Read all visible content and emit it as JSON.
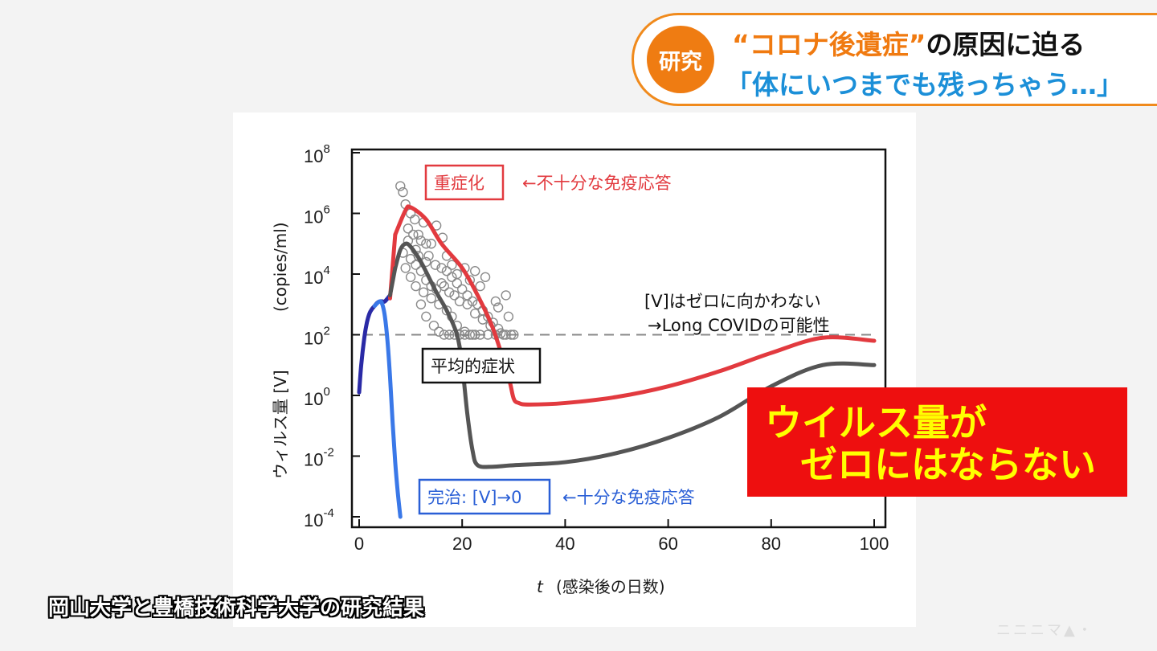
{
  "banner": {
    "badge": "研究",
    "headline_part1": "“コロナ後遺症”",
    "headline_part2": "の原因に迫る",
    "subheadline": "「体にいつまでも残っちゃう…」",
    "accent_color": "#f07a10",
    "sub_color": "#1b8fd8"
  },
  "chart_data": {
    "type": "line",
    "xlabel_var": "t",
    "xlabel": "(感染後の日数)",
    "ylabel_var": "ウィルス量 [V]",
    "ylabel_unit": "(copies/ml)",
    "xlim": [
      0,
      100
    ],
    "ylim_log10": [
      -4,
      8
    ],
    "y_scale": "log",
    "x_ticks": [
      "0",
      "20",
      "40",
      "60",
      "80",
      "100"
    ],
    "x_tick_values": [
      0,
      20,
      40,
      60,
      80,
      100
    ],
    "y_ticks": [
      {
        "base": "10",
        "exp": "8",
        "value": 8
      },
      {
        "base": "10",
        "exp": "6",
        "value": 6
      },
      {
        "base": "10",
        "exp": "4",
        "value": 4
      },
      {
        "base": "10",
        "exp": "2",
        "value": 2
      },
      {
        "base": "10",
        "exp": "0",
        "value": 0
      },
      {
        "base": "10",
        "exp": "-2",
        "value": -2
      },
      {
        "base": "10",
        "exp": "-4",
        "value": -4
      }
    ],
    "threshold_log10": 2,
    "series": [
      {
        "color": "#e23a3f",
        "x": [
          7,
          9,
          10,
          13,
          16,
          20,
          23,
          26,
          29,
          30,
          31,
          33,
          40,
          50,
          60,
          70,
          80,
          90,
          100
        ],
        "log10_y": [
          5.3,
          6.1,
          6.2,
          5.8,
          5.0,
          4.2,
          3.3,
          2.2,
          0.6,
          -0.1,
          -0.25,
          -0.3,
          -0.25,
          -0.05,
          0.3,
          0.8,
          1.4,
          1.9,
          1.8
        ]
      },
      {
        "color": "#555555",
        "x": [
          7,
          8,
          9,
          10,
          12,
          15,
          17,
          19,
          20,
          21,
          22,
          23,
          26,
          30,
          40,
          50,
          60,
          70,
          80,
          90,
          100
        ],
        "log10_y": [
          4.2,
          4.8,
          5.0,
          4.9,
          4.4,
          3.4,
          2.8,
          2.0,
          1.0,
          -0.6,
          -1.8,
          -2.3,
          -2.35,
          -2.3,
          -2.2,
          -1.9,
          -1.4,
          -0.7,
          0.3,
          1.0,
          1.0
        ]
      },
      {
        "color": "#2a2aa6",
        "x": [
          0,
          0.4,
          1,
          1.5,
          2,
          2.5,
          3,
          3.5,
          4,
          4.5,
          5,
          6
        ],
        "log10_y": [
          0.1,
          1.0,
          1.9,
          2.4,
          2.7,
          2.85,
          2.95,
          3.05,
          3.1,
          3.1,
          3.1,
          3.3
        ]
      },
      {
        "color": "#3a78e8",
        "x": [
          3,
          4,
          4.5,
          5,
          5.5,
          6,
          6.5,
          7,
          7.5,
          8
        ],
        "log10_y": [
          2.95,
          3.1,
          3.0,
          2.6,
          1.8,
          0.6,
          -0.9,
          -2.2,
          -3.2,
          -4.0
        ]
      },
      {
        "color": "#e23a3f",
        "x": [
          6,
          7
        ],
        "log10_y": [
          3.2,
          5.3
        ]
      },
      {
        "color": "#555555",
        "x": [
          6,
          7
        ],
        "log10_y": [
          3.3,
          4.2
        ]
      }
    ],
    "scatter_points": [
      [
        8.0,
        6.9
      ],
      [
        9.0,
        6.3
      ],
      [
        8.5,
        6.7
      ],
      [
        10.0,
        6.0
      ],
      [
        11.5,
        5.3
      ],
      [
        9.5,
        5.5
      ],
      [
        10.8,
        5.8
      ],
      [
        12.0,
        5.1
      ],
      [
        13.0,
        5.0
      ],
      [
        14.0,
        5.0
      ],
      [
        15.0,
        5.6
      ],
      [
        16.2,
        5.2
      ],
      [
        12.5,
        5.7
      ],
      [
        11.0,
        4.8
      ],
      [
        13.5,
        4.6
      ],
      [
        14.8,
        4.3
      ],
      [
        16.0,
        4.2
      ],
      [
        17.0,
        4.1
      ],
      [
        18.0,
        3.9
      ],
      [
        19.0,
        3.7
      ],
      [
        20.0,
        3.5
      ],
      [
        21.0,
        3.3
      ],
      [
        22.0,
        3.1
      ],
      [
        23.0,
        3.0
      ],
      [
        24.0,
        2.8
      ],
      [
        25.0,
        2.6
      ],
      [
        26.0,
        2.4
      ],
      [
        27.0,
        2.2
      ],
      [
        28.0,
        2.0
      ],
      [
        29.5,
        2.0
      ],
      [
        9.0,
        4.2
      ],
      [
        10.0,
        4.5
      ],
      [
        11.0,
        4.3
      ],
      [
        12.0,
        4.1
      ],
      [
        13.0,
        3.8
      ],
      [
        14.0,
        3.6
      ],
      [
        15.0,
        3.5
      ],
      [
        16.0,
        3.7
      ],
      [
        17.5,
        3.4
      ],
      [
        18.5,
        3.3
      ],
      [
        19.5,
        3.1
      ],
      [
        21.0,
        3.0
      ],
      [
        22.5,
        2.7
      ],
      [
        24.0,
        2.5
      ],
      [
        25.5,
        2.3
      ],
      [
        11.0,
        3.6
      ],
      [
        12.5,
        3.4
      ],
      [
        14.0,
        3.2
      ],
      [
        15.5,
        3.0
      ],
      [
        17.0,
        2.8
      ],
      [
        18.0,
        2.6
      ],
      [
        19.0,
        2.3
      ],
      [
        20.5,
        2.1
      ],
      [
        22.0,
        2.0
      ],
      [
        23.5,
        2.0
      ],
      [
        25.0,
        2.0
      ],
      [
        26.5,
        2.0
      ],
      [
        27.5,
        2.05
      ],
      [
        28.5,
        2.0
      ],
      [
        30.0,
        2.0
      ],
      [
        20.5,
        4.2
      ],
      [
        21.5,
        3.8
      ],
      [
        22.5,
        4.1
      ],
      [
        23.5,
        3.6
      ],
      [
        24.5,
        3.9
      ],
      [
        26.5,
        3.1
      ],
      [
        28.5,
        3.3
      ],
      [
        27.0,
        2.9
      ],
      [
        29.0,
        2.6
      ],
      [
        12.0,
        3.0
      ],
      [
        13.0,
        2.6
      ],
      [
        14.5,
        2.3
      ],
      [
        15.5,
        2.1
      ],
      [
        16.5,
        2.0
      ],
      [
        17.5,
        2.0
      ],
      [
        18.5,
        2.0
      ],
      [
        19.5,
        2.0
      ],
      [
        20.5,
        2.0
      ],
      [
        21.5,
        2.0
      ],
      [
        22.5,
        2.0
      ],
      [
        16.5,
        3.6
      ],
      [
        17.0,
        4.6
      ],
      [
        9.5,
        5.1
      ],
      [
        10.5,
        5.3
      ],
      [
        8.5,
        4.7
      ],
      [
        10.0,
        3.9
      ],
      [
        11.5,
        4.6
      ],
      [
        13.0,
        4.4
      ],
      [
        18.0,
        4.3
      ],
      [
        19.0,
        4.0
      ]
    ],
    "scatter_color": "#8a8a8a",
    "annotations": {
      "severe": "重症化",
      "severe_note": "←不十分な免疫応答",
      "average": "平均的症状",
      "cured": "完治: [V]→0",
      "cured_note": "←十分な免疫応答",
      "persist_line1": "[V]はゼロに向かわない",
      "persist_line2": "→Long COVIDの可能性"
    },
    "grid": false
  },
  "callout": {
    "line1": "ウイルス量が",
    "line2": "ゼロにはならない",
    "bg_color": "#ee0f0f",
    "text_color": "#ffff00"
  },
  "caption": "岡山大学と豊橋技術科学大学の研究結果",
  "watermark": "ニニニマ▲・"
}
